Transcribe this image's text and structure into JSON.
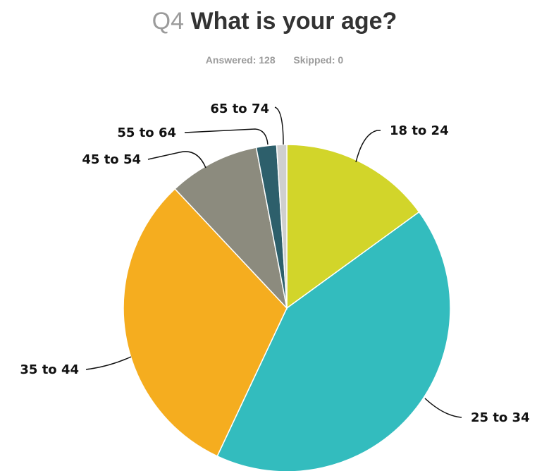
{
  "header": {
    "question_number": "Q4",
    "question_text": "What is your age?",
    "answered_label": "Answered:",
    "answered_count": "128",
    "skipped_label": "Skipped:",
    "skipped_count": "0"
  },
  "chart_data": {
    "type": "pie",
    "title": "Q4 What is your age?",
    "categories": [
      "18 to 24",
      "25 to 34",
      "35 to 44",
      "45 to 54",
      "55 to 64",
      "65 to 74"
    ],
    "values": [
      15,
      42,
      31,
      9,
      2,
      1
    ],
    "colors": [
      "#d2d52a",
      "#33bcbe",
      "#f5ad1f",
      "#8c8b7e",
      "#2d5f6b",
      "#cfcfcf"
    ],
    "legend": "none",
    "start_angle_deg": 0,
    "direction": "clockwise"
  }
}
